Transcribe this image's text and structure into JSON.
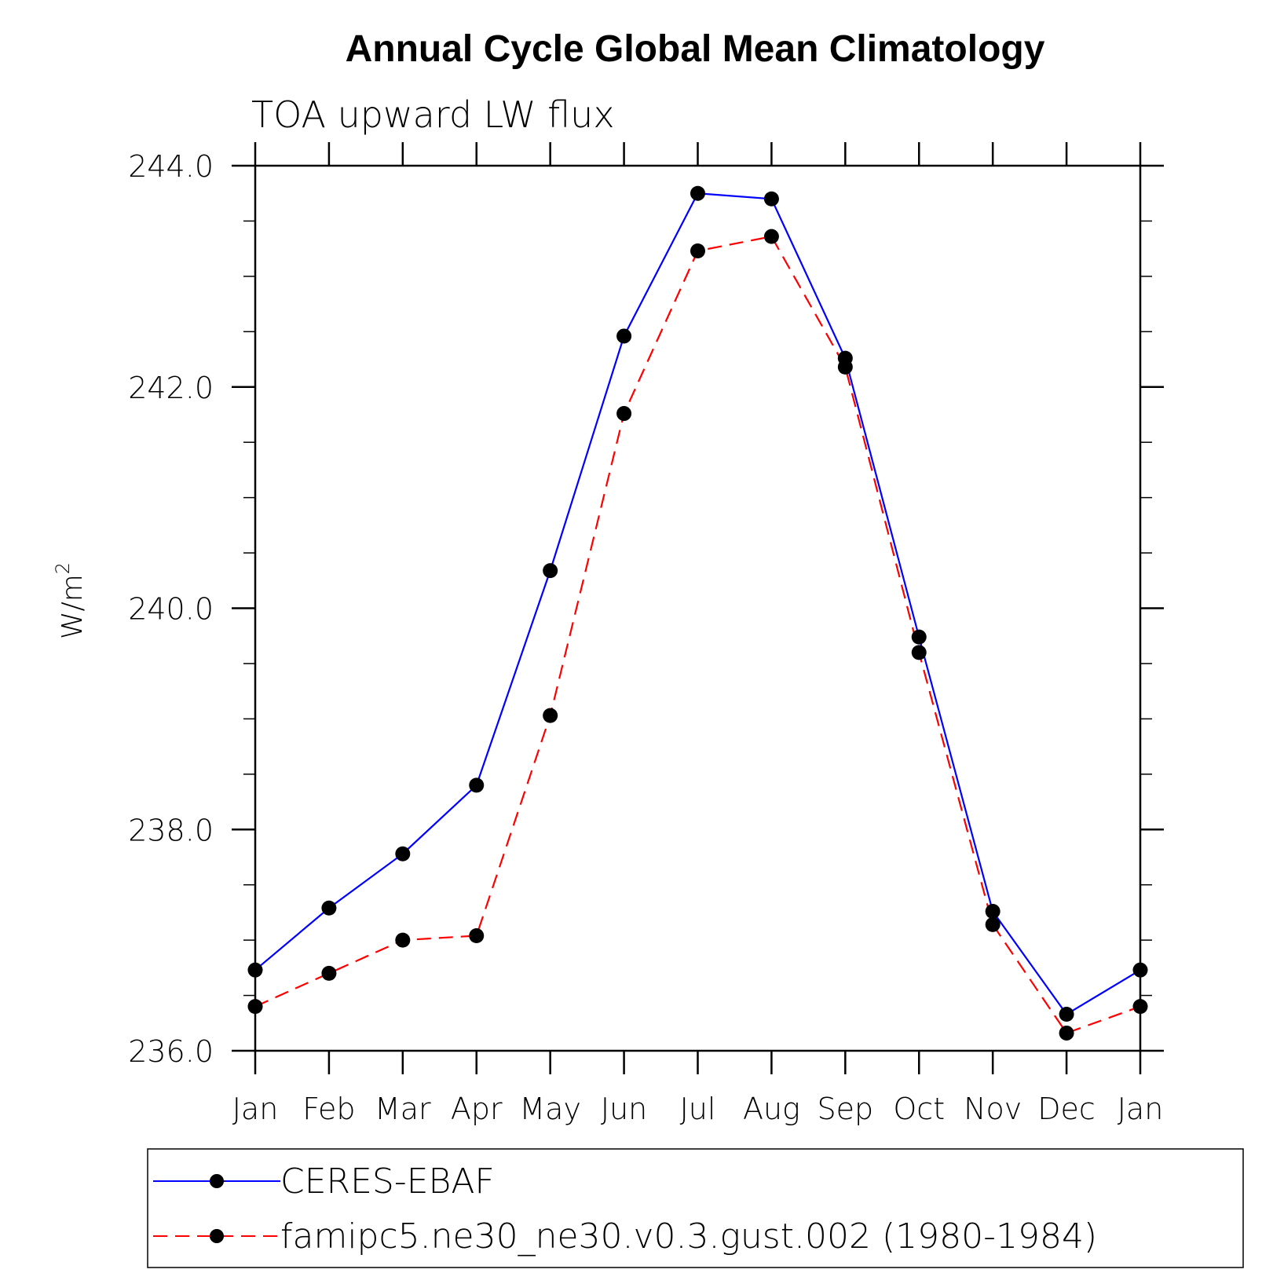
{
  "chart_data": {
    "type": "line",
    "title": "Annual Cycle Global Mean Climatology",
    "subtitle": "TOA upward LW flux",
    "ylabel": "W/m",
    "ylabel_sup": "2",
    "xlabel": "",
    "categories": [
      "Jan",
      "Feb",
      "Mar",
      "Apr",
      "May",
      "Jun",
      "Jul",
      "Aug",
      "Sep",
      "Oct",
      "Nov",
      "Dec",
      "Jan"
    ],
    "ylim": [
      236.0,
      244.0
    ],
    "yticks": [
      236.0,
      238.0,
      240.0,
      242.0,
      244.0
    ],
    "ytick_labels": [
      "236.0",
      "238.0",
      "240.0",
      "242.0",
      "244.0"
    ],
    "y_minor_step": 0.5,
    "series": [
      {
        "name": "CERES-EBAF",
        "color": "#0000ff",
        "dash": "solid",
        "values": [
          236.73,
          237.29,
          237.78,
          238.4,
          240.34,
          242.46,
          243.75,
          243.7,
          242.26,
          239.74,
          237.26,
          236.33,
          236.73
        ]
      },
      {
        "name": "famipc5.ne30_ne30.v0.3.gust.002 (1980-1984)",
        "color": "#ff0000",
        "dash": "dashed",
        "values": [
          236.4,
          236.7,
          237.0,
          237.04,
          239.03,
          241.76,
          243.23,
          243.36,
          242.18,
          239.6,
          237.14,
          236.16,
          236.4
        ]
      }
    ],
    "grid": false,
    "legend_position": "bottom",
    "marker": "filled-circle",
    "marker_color": "#000000"
  }
}
